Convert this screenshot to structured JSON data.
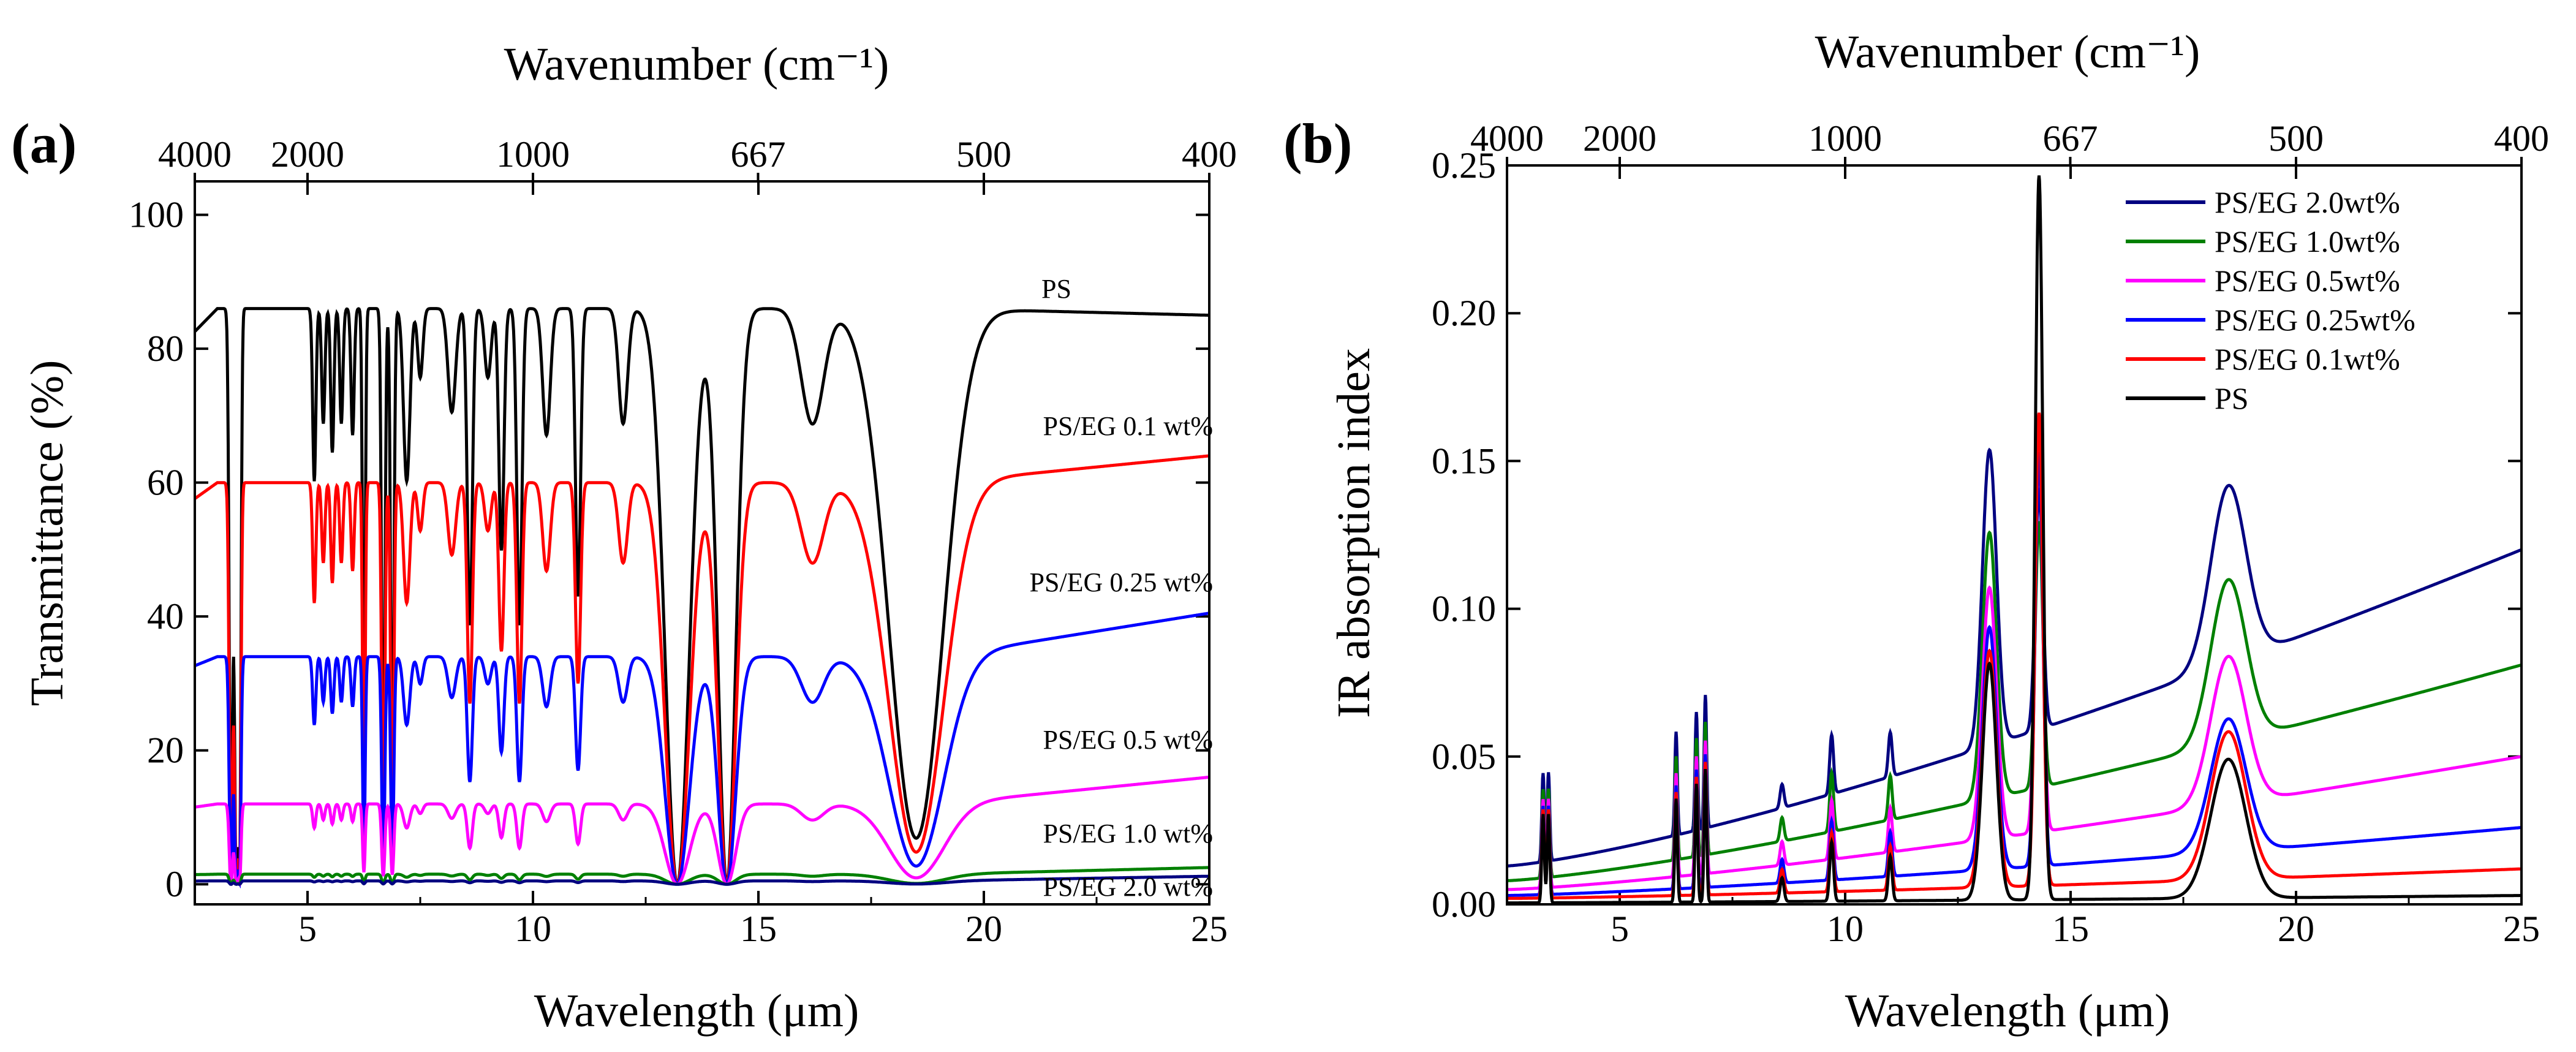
{
  "chart_data": [
    {
      "type": "line",
      "panel_label": "(a)",
      "xlabel": "Wavelength (μm)",
      "ylabel": "Transmittance (%)",
      "top_xlabel": "Wavenumber (cm⁻¹)",
      "xlim": [
        2.5,
        25
      ],
      "ylim": [
        -3,
        105
      ],
      "x_ticks": [
        5,
        10,
        15,
        20,
        25
      ],
      "y_ticks": [
        0,
        20,
        40,
        60,
        80,
        100
      ],
      "top_ticks": [
        {
          "value": 4000,
          "label": "4000"
        },
        {
          "value": 2000,
          "label": "2000"
        },
        {
          "value": 1000,
          "label": "1000"
        },
        {
          "value": 667,
          "label": "667"
        },
        {
          "value": 500,
          "label": "500"
        },
        {
          "value": 400,
          "label": "400"
        }
      ],
      "series": [
        {
          "name": "PS",
          "color": "#000000",
          "annotation": "PS",
          "baseline": 86,
          "tail": 85,
          "fill_scale": 1.0
        },
        {
          "name": "PS/EG 0.1 wt%",
          "color": "#ff0000",
          "annotation": "PS/EG 0.1 wt%",
          "baseline": 60,
          "tail": 64,
          "fill_scale": 0.66
        },
        {
          "name": "PS/EG 0.25 wt%",
          "color": "#0000ff",
          "annotation": "PS/EG 0.25 wt%",
          "baseline": 34,
          "tail": 40.5,
          "fill_scale": 0.42
        },
        {
          "name": "PS/EG 0.5 wt%",
          "color": "#ff00ff",
          "annotation": "PS/EG 0.5 wt%",
          "baseline": 12,
          "tail": 16,
          "fill_scale": 0.17
        },
        {
          "name": "PS/EG 1.0 wt%",
          "color": "#008000",
          "annotation": "PS/EG 1.0 wt%",
          "baseline": 1.5,
          "tail": 2.5,
          "fill_scale": 0.03
        },
        {
          "name": "PS/EG 2.0 wt%",
          "color": "#000080",
          "annotation": "PS/EG 2.0 wt%",
          "baseline": 0.5,
          "tail": 1.2,
          "fill_scale": 0.01
        }
      ]
    },
    {
      "type": "line",
      "panel_label": "(b)",
      "xlabel": "Wavelength (μm)",
      "ylabel": "IR absorption index",
      "top_xlabel": "Wavenumber (cm⁻¹)",
      "xlim": [
        2.5,
        25
      ],
      "ylim": [
        0,
        0.25
      ],
      "x_ticks": [
        5,
        10,
        15,
        20,
        25
      ],
      "y_ticks": [
        0.0,
        0.05,
        0.1,
        0.15,
        0.2,
        0.25
      ],
      "y_tick_labels": [
        "0.00",
        "0.05",
        "0.10",
        "0.15",
        "0.20",
        "0.25"
      ],
      "top_ticks": [
        {
          "value": 4000,
          "label": "4000"
        },
        {
          "value": 2000,
          "label": "2000"
        },
        {
          "value": 1000,
          "label": "1000"
        },
        {
          "value": 667,
          "label": "667"
        },
        {
          "value": 500,
          "label": "500"
        },
        {
          "value": 400,
          "label": "400"
        }
      ],
      "legend_position": "top-right",
      "series": [
        {
          "name": "PS/EG 2.0wt%",
          "color": "#000080",
          "offset_start": 0.013,
          "offset_end": 0.12,
          "peak_18": 0.06,
          "peak_13": 0.1,
          "peak_14": 0.08
        },
        {
          "name": "PS/EG 1.0wt%",
          "color": "#008000",
          "offset_start": 0.008,
          "offset_end": 0.081,
          "peak_18": 0.055,
          "peak_13": 0.09,
          "peak_14": 0.09
        },
        {
          "name": "PS/EG 0.5wt%",
          "color": "#ff00ff",
          "offset_start": 0.005,
          "offset_end": 0.05,
          "peak_18": 0.05,
          "peak_13": 0.085,
          "peak_14": 0.13
        },
        {
          "name": "PS/EG 0.25wt%",
          "color": "#0000ff",
          "offset_start": 0.003,
          "offset_end": 0.026,
          "peak_18": 0.045,
          "peak_13": 0.082,
          "peak_14": 0.14
        },
        {
          "name": "PS/EG 0.1wt%",
          "color": "#ff0000",
          "offset_start": 0.002,
          "offset_end": 0.012,
          "peak_18": 0.05,
          "peak_13": 0.08,
          "peak_14": 0.16
        },
        {
          "name": "PS",
          "color": "#000000",
          "offset_start": 0.0005,
          "offset_end": 0.003,
          "peak_18": 0.047,
          "peak_13": 0.08,
          "peak_14": 0.245
        }
      ]
    }
  ]
}
